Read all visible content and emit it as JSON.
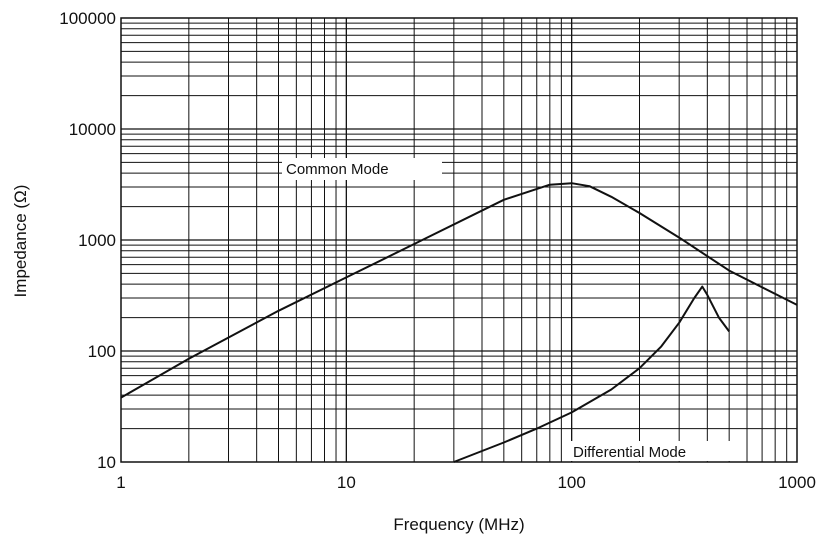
{
  "chart_data": {
    "type": "line",
    "xlabel": "Frequency (MHz)",
    "ylabel": "Impedance (Ω)",
    "xscale": "log",
    "yscale": "log",
    "xlim": [
      1,
      1000
    ],
    "ylim": [
      10,
      100000
    ],
    "xticks": [
      "1",
      "10",
      "100",
      "1000"
    ],
    "yticks": [
      "10",
      "100",
      "1000",
      "10000",
      "100000"
    ],
    "grid": true,
    "annotations": [
      "Common Mode",
      "Differential Mode"
    ],
    "series": [
      {
        "name": "Common Mode",
        "x": [
          1,
          2,
          5,
          10,
          20,
          50,
          80,
          100,
          120,
          150,
          200,
          300,
          500,
          1000
        ],
        "y": [
          38,
          85,
          230,
          460,
          920,
          2300,
          3150,
          3250,
          3050,
          2450,
          1750,
          1050,
          530,
          260
        ]
      },
      {
        "name": "Differential Mode",
        "x": [
          30,
          50,
          70,
          100,
          150,
          200,
          250,
          300,
          350,
          380,
          400,
          450,
          500
        ],
        "y": [
          10,
          15,
          20,
          28,
          45,
          70,
          110,
          180,
          300,
          380,
          320,
          200,
          150
        ]
      }
    ]
  }
}
